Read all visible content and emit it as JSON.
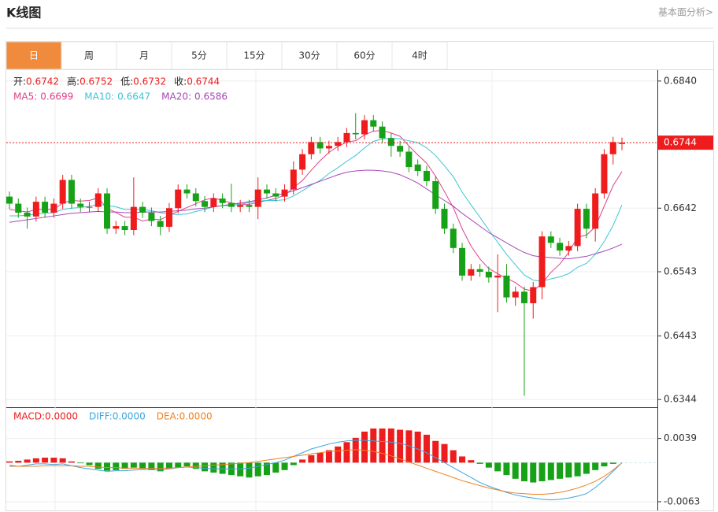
{
  "header": {
    "title": "K线图",
    "link": "基本面分析>"
  },
  "tabs": [
    "日",
    "周",
    "月",
    "5分",
    "15分",
    "30分",
    "60分",
    "4时"
  ],
  "active_tab": 0,
  "chart_data": [
    {
      "type": "candlestick",
      "up_color": "#ee1c1c",
      "down_color": "#16a116",
      "info_labels": [
        "开:",
        "高:",
        "低:",
        "收:"
      ],
      "open": [
        0.666,
        0.6649,
        0.6635,
        0.6629,
        0.6652,
        0.6635,
        0.6649,
        0.6686,
        0.6649,
        0.6644,
        0.6644,
        0.6665,
        0.661,
        0.6614,
        0.6608,
        0.6644,
        0.6635,
        0.6622,
        0.6613,
        0.6642,
        0.6671,
        0.6665,
        0.6653,
        0.6644,
        0.6657,
        0.665,
        0.6644,
        0.6647,
        0.6644,
        0.6671,
        0.6665,
        0.666,
        0.6671,
        0.6702,
        0.6726,
        0.6745,
        0.6735,
        0.6739,
        0.6745,
        0.6759,
        0.6757,
        0.6779,
        0.6769,
        0.6751,
        0.6739,
        0.673,
        0.671,
        0.67,
        0.6684,
        0.6641,
        0.661,
        0.658,
        0.6537,
        0.6547,
        0.6543,
        0.6534,
        0.6537,
        0.6503,
        0.6512,
        0.6494,
        0.6519,
        0.6598,
        0.6588,
        0.6576,
        0.6583,
        0.6641,
        0.661,
        0.6665,
        0.6726,
        0.6742
      ],
      "high": [
        0.6668,
        0.6657,
        0.6643,
        0.666,
        0.666,
        0.6657,
        0.6694,
        0.6694,
        0.6657,
        0.6652,
        0.6673,
        0.6673,
        0.6622,
        0.6622,
        0.669,
        0.6652,
        0.6643,
        0.663,
        0.665,
        0.6679,
        0.6679,
        0.6673,
        0.6661,
        0.6665,
        0.6665,
        0.668,
        0.6655,
        0.6655,
        0.669,
        0.6679,
        0.6673,
        0.6679,
        0.6715,
        0.6734,
        0.6753,
        0.6753,
        0.6747,
        0.6753,
        0.6767,
        0.679,
        0.6787,
        0.6787,
        0.6777,
        0.6759,
        0.6747,
        0.6738,
        0.6718,
        0.6708,
        0.6692,
        0.6649,
        0.6618,
        0.6588,
        0.6555,
        0.6555,
        0.6551,
        0.657,
        0.6555,
        0.652,
        0.652,
        0.6527,
        0.6606,
        0.6606,
        0.6596,
        0.6591,
        0.6649,
        0.6649,
        0.6673,
        0.6734,
        0.6753,
        0.6752
      ],
      "low": [
        0.6641,
        0.6627,
        0.661,
        0.6621,
        0.6627,
        0.6627,
        0.6641,
        0.6641,
        0.6636,
        0.6636,
        0.6636,
        0.6602,
        0.6602,
        0.66,
        0.66,
        0.6627,
        0.6614,
        0.66,
        0.6605,
        0.6634,
        0.6657,
        0.6645,
        0.6636,
        0.6636,
        0.6642,
        0.6636,
        0.6636,
        0.6636,
        0.6625,
        0.6657,
        0.6652,
        0.6652,
        0.6663,
        0.6694,
        0.6718,
        0.6727,
        0.6727,
        0.6731,
        0.6737,
        0.6749,
        0.6749,
        0.6761,
        0.6743,
        0.6722,
        0.6722,
        0.6698,
        0.6692,
        0.6676,
        0.6633,
        0.6602,
        0.6572,
        0.6529,
        0.6529,
        0.6535,
        0.6526,
        0.648,
        0.6495,
        0.649,
        0.635,
        0.647,
        0.65,
        0.658,
        0.6568,
        0.6568,
        0.6575,
        0.6595,
        0.659,
        0.6657,
        0.671,
        0.6732
      ],
      "close": [
        0.6649,
        0.6635,
        0.6629,
        0.6652,
        0.6635,
        0.6649,
        0.6686,
        0.6649,
        0.6644,
        0.6644,
        0.6665,
        0.661,
        0.6614,
        0.6608,
        0.6644,
        0.6635,
        0.6622,
        0.6613,
        0.6642,
        0.6671,
        0.6665,
        0.6653,
        0.6644,
        0.6657,
        0.665,
        0.6644,
        0.6647,
        0.6644,
        0.6671,
        0.6665,
        0.666,
        0.6671,
        0.6702,
        0.6726,
        0.6745,
        0.6735,
        0.6739,
        0.6745,
        0.6759,
        0.6757,
        0.6779,
        0.6769,
        0.6751,
        0.6739,
        0.673,
        0.6706,
        0.67,
        0.6684,
        0.6641,
        0.661,
        0.658,
        0.6537,
        0.6547,
        0.6543,
        0.6534,
        0.6537,
        0.6503,
        0.6512,
        0.6494,
        0.6519,
        0.6598,
        0.6588,
        0.6576,
        0.6583,
        0.6641,
        0.661,
        0.6665,
        0.6726,
        0.6745,
        0.6744
      ],
      "series": [
        {
          "name": "MA5:",
          "color": "#e0408a",
          "values": [
            0.664,
            0.6638,
            0.6636,
            0.664,
            0.664,
            0.664,
            0.665,
            0.6654,
            0.6653,
            0.6654,
            0.6658,
            0.6642,
            0.6635,
            0.6628,
            0.6628,
            0.6622,
            0.6625,
            0.6624,
            0.6631,
            0.6637,
            0.6643,
            0.6649,
            0.6655,
            0.6658,
            0.6654,
            0.665,
            0.6648,
            0.6648,
            0.6651,
            0.6654,
            0.6657,
            0.6662,
            0.6674,
            0.6685,
            0.6701,
            0.6716,
            0.6729,
            0.6738,
            0.6745,
            0.6747,
            0.6756,
            0.6762,
            0.6763,
            0.6759,
            0.6754,
            0.6739,
            0.6725,
            0.6712,
            0.6692,
            0.6668,
            0.6643,
            0.661,
            0.6583,
            0.6563,
            0.6548,
            0.654,
            0.6533,
            0.6526,
            0.6516,
            0.6513,
            0.6525,
            0.6542,
            0.6555,
            0.6573,
            0.6597,
            0.66,
            0.6613,
            0.6645,
            0.6677,
            0.6699
          ]
        },
        {
          "name": "MA10:",
          "color": "#3cc4d6",
          "values": [
            0.663,
            0.663,
            0.6631,
            0.6633,
            0.6634,
            0.6635,
            0.664,
            0.6642,
            0.6643,
            0.6645,
            0.6648,
            0.6646,
            0.6644,
            0.664,
            0.664,
            0.664,
            0.6638,
            0.6635,
            0.6633,
            0.6632,
            0.6633,
            0.6637,
            0.664,
            0.6644,
            0.6646,
            0.6646,
            0.6648,
            0.6651,
            0.6653,
            0.6654,
            0.6654,
            0.6655,
            0.6661,
            0.6669,
            0.6678,
            0.6685,
            0.6696,
            0.6705,
            0.6715,
            0.6724,
            0.6736,
            0.6746,
            0.675,
            0.6751,
            0.675,
            0.6747,
            0.6744,
            0.6736,
            0.6724,
            0.6708,
            0.6691,
            0.6667,
            0.6647,
            0.6628,
            0.6608,
            0.6589,
            0.657,
            0.6554,
            0.6538,
            0.653,
            0.6528,
            0.6532,
            0.6535,
            0.654,
            0.655,
            0.6556,
            0.657,
            0.659,
            0.6615,
            0.6647
          ]
        },
        {
          "name": "MA20:",
          "color": "#a846b8",
          "values": [
            0.662,
            0.6622,
            0.6624,
            0.6626,
            0.6628,
            0.663,
            0.6632,
            0.6634,
            0.6635,
            0.6636,
            0.6637,
            0.6636,
            0.6636,
            0.6635,
            0.6635,
            0.6636,
            0.6636,
            0.6636,
            0.6637,
            0.6638,
            0.6639,
            0.6641,
            0.6642,
            0.6644,
            0.6646,
            0.6648,
            0.665,
            0.6652,
            0.6655,
            0.6658,
            0.6662,
            0.6665,
            0.6669,
            0.6674,
            0.6679,
            0.6684,
            0.6689,
            0.6694,
            0.6698,
            0.67,
            0.6701,
            0.6701,
            0.67,
            0.6698,
            0.6694,
            0.6688,
            0.6681,
            0.6672,
            0.6663,
            0.6654,
            0.6645,
            0.6634,
            0.6624,
            0.6614,
            0.6604,
            0.6596,
            0.6588,
            0.658,
            0.6573,
            0.6568,
            0.6566,
            0.6565,
            0.6564,
            0.6563,
            0.6565,
            0.6567,
            0.6571,
            0.6575,
            0.658,
            0.6586
          ]
        }
      ],
      "ylim": [
        0.6332,
        0.6857
      ],
      "yticks": [
        {
          "value": 0.684,
          "label": "0.6840"
        },
        0.6642,
        0.6543,
        0.6443,
        0.6344
      ],
      "grid": true
    },
    {
      "type": "macd",
      "up_color": "#ee1c1c",
      "down_color": "#16a116",
      "histogram": {
        "name": "MACD:",
        "current_label": "0.0000",
        "color": "#ee1c1c",
        "values": [
          0.0002,
          0.0003,
          0.0005,
          0.0007,
          0.0008,
          0.0008,
          0.0007,
          0.0002,
          -0.0001,
          -0.0004,
          -0.001,
          -0.0013,
          -0.0012,
          -0.001,
          -0.0008,
          -0.001,
          -0.0012,
          -0.0014,
          -0.001,
          -0.0008,
          -0.0006,
          -0.001,
          -0.0014,
          -0.0016,
          -0.0018,
          -0.002,
          -0.0022,
          -0.0024,
          -0.0022,
          -0.002,
          -0.0016,
          -0.0012,
          -0.0004,
          0.0005,
          0.0012,
          0.0016,
          0.002,
          0.0026,
          0.0033,
          0.004,
          0.005,
          0.0055,
          0.0055,
          0.0055,
          0.0053,
          0.0052,
          0.005,
          0.0045,
          0.0035,
          0.003,
          0.002,
          0.001,
          0.0004,
          -0.0002,
          -0.0008,
          -0.0014,
          -0.002,
          -0.0026,
          -0.003,
          -0.0032,
          -0.003,
          -0.0028,
          -0.0026,
          -0.0024,
          -0.0022,
          -0.0018,
          -0.0012,
          -0.0006,
          -0.0002,
          0.0
        ]
      },
      "series": [
        {
          "name": "DIFF:",
          "current_label": "0.0000",
          "color": "#3aa5e0",
          "values": [
            -0.0004,
            -0.0006,
            -0.0004,
            -0.0002,
            -0.0002,
            -0.0003,
            -0.0002,
            -0.0005,
            -0.0008,
            -0.001,
            -0.0012,
            -0.0014,
            -0.0013,
            -0.0013,
            -0.0012,
            -0.0011,
            -0.0011,
            -0.0012,
            -0.001,
            -0.0008,
            -0.0007,
            -0.0008,
            -0.0009,
            -0.001,
            -0.001,
            -0.001,
            -0.001,
            -0.0009,
            -0.0006,
            -0.0003,
            0.0,
            0.0004,
            0.001,
            0.0016,
            0.0022,
            0.0026,
            0.003,
            0.0033,
            0.0035,
            0.0036,
            0.0036,
            0.0035,
            0.0034,
            0.0033,
            0.0031,
            0.0027,
            0.0022,
            0.0016,
            0.0008,
            0.0,
            -0.0008,
            -0.0016,
            -0.0024,
            -0.0032,
            -0.0038,
            -0.0043,
            -0.0048,
            -0.0052,
            -0.0055,
            -0.0057,
            -0.0059,
            -0.006,
            -0.0059,
            -0.0057,
            -0.0054,
            -0.005,
            -0.004,
            -0.0028,
            -0.0014,
            0.0
          ]
        },
        {
          "name": "DEA:",
          "current_label": "0.0000",
          "color": "#f08020",
          "values": [
            -0.0006,
            -0.0006,
            -0.0006,
            -0.0006,
            -0.0005,
            -0.0005,
            -0.0005,
            -0.0005,
            -0.0006,
            -0.0006,
            -0.0007,
            -0.0008,
            -0.0008,
            -0.0009,
            -0.0009,
            -0.0009,
            -0.0009,
            -0.0009,
            -0.0009,
            -0.0008,
            -0.0007,
            -0.0006,
            -0.0005,
            -0.0004,
            -0.0003,
            -0.0002,
            -0.0001,
            0.0,
            0.0002,
            0.0004,
            0.0006,
            0.0008,
            0.001,
            0.0012,
            0.0014,
            0.0016,
            0.0018,
            0.0019,
            0.002,
            0.0021,
            0.002,
            0.0018,
            0.0015,
            0.0011,
            0.0006,
            0.0001,
            -0.0004,
            -0.0009,
            -0.0014,
            -0.0019,
            -0.0024,
            -0.0029,
            -0.0033,
            -0.0037,
            -0.0041,
            -0.0044,
            -0.0047,
            -0.0049,
            -0.005,
            -0.0051,
            -0.0051,
            -0.005,
            -0.0048,
            -0.0045,
            -0.0041,
            -0.0036,
            -0.003,
            -0.0022,
            -0.0012,
            0.0
          ]
        }
      ],
      "ylim": [
        -0.0077,
        0.0088
      ],
      "yticks": [
        0.0039,
        -0.0063
      ],
      "grid": true
    }
  ]
}
